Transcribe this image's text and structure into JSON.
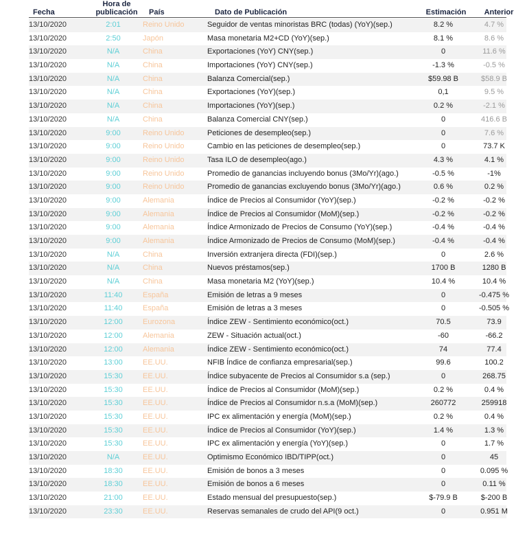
{
  "headers": {
    "date": "Fecha",
    "time_line1": "Hora de",
    "time_line2": "publicación",
    "country": "País",
    "event": "Dato de Publicación",
    "estimate": "Estimación",
    "previous": "Anterior"
  },
  "colors": {
    "time": "#5ecfd6",
    "country": "#f7c59a",
    "stripe": "#f2f2f2",
    "muted": "#9a9a9a"
  },
  "rows": [
    {
      "date": "13/10/2020",
      "time": "2:01",
      "country": "Reino Unido",
      "event": "Seguidor de ventas minoristas BRC (todas) (YoY)(sep.)",
      "estimate": "8.2 %",
      "previous": "4.7 %",
      "muted": true
    },
    {
      "date": "13/10/2020",
      "time": "2:50",
      "country": "Japón",
      "event": "Masa monetaria M2+CD (YoY)(sep.)",
      "estimate": "8.1 %",
      "previous": "8.6 %",
      "muted": true
    },
    {
      "date": "13/10/2020",
      "time": "N/A",
      "country": "China",
      "event": "Exportaciones (YoY) CNY(sep.)",
      "estimate": "0",
      "previous": "11.6 %",
      "muted": true
    },
    {
      "date": "13/10/2020",
      "time": "N/A",
      "country": "China",
      "event": "Importaciones (YoY) CNY(sep.)",
      "estimate": "-1.3 %",
      "previous": "-0.5 %",
      "muted": true
    },
    {
      "date": "13/10/2020",
      "time": "N/A",
      "country": "China",
      "event": "Balanza Comercial(sep.)",
      "estimate": "$59.98 B",
      "previous": "$58.9 B",
      "muted": true
    },
    {
      "date": "13/10/2020",
      "time": "N/A",
      "country": "China",
      "event": "Exportaciones (YoY)(sep.)",
      "estimate": "0,1",
      "previous": "9.5 %",
      "muted": true
    },
    {
      "date": "13/10/2020",
      "time": "N/A",
      "country": "China",
      "event": "Importaciones (YoY)(sep.)",
      "estimate": "0.2 %",
      "previous": "-2.1 %",
      "muted": true
    },
    {
      "date": "13/10/2020",
      "time": "N/A",
      "country": "China",
      "event": "Balanza Comercial CNY(sep.)",
      "estimate": "0",
      "previous": "416.6 B",
      "muted": true
    },
    {
      "date": "13/10/2020",
      "time": "9:00",
      "country": "Reino Unido",
      "event": "Peticiones de desempleo(sep.)",
      "estimate": "0",
      "previous": "7.6 %",
      "muted": true
    },
    {
      "date": "13/10/2020",
      "time": "9:00",
      "country": "Reino Unido",
      "event": "Cambio en las peticiones de desempleo(sep.)",
      "estimate": "0",
      "previous": "73.7 K",
      "muted": false
    },
    {
      "date": "13/10/2020",
      "time": "9:00",
      "country": "Reino Unido",
      "event": "Tasa ILO de desempleo(ago.)",
      "estimate": "4.3 %",
      "previous": "4.1 %",
      "muted": false
    },
    {
      "date": "13/10/2020",
      "time": "9:00",
      "country": "Reino Unido",
      "event": "Promedio de ganancias incluyendo bonus (3Mo/Yr)(ago.)",
      "estimate": "-0.5 %",
      "previous": "-1%",
      "muted": false
    },
    {
      "date": "13/10/2020",
      "time": "9:00",
      "country": "Reino Unido",
      "event": "Promedio de ganancias excluyendo bonus (3Mo/Yr)(ago.)",
      "estimate": "0.6 %",
      "previous": "0.2 %",
      "muted": false
    },
    {
      "date": "13/10/2020",
      "time": "9:00",
      "country": "Alemania",
      "event": "Índice de Precios al Consumidor (YoY)(sep.)",
      "estimate": "-0.2 %",
      "previous": "-0.2 %",
      "muted": false
    },
    {
      "date": "13/10/2020",
      "time": "9:00",
      "country": "Alemania",
      "event": "Índice de Precios al Consumidor (MoM)(sep.)",
      "estimate": "-0.2 %",
      "previous": "-0.2 %",
      "muted": false
    },
    {
      "date": "13/10/2020",
      "time": "9:00",
      "country": "Alemania",
      "event": "Índice Armonizado de Precios de Consumo (YoY)(sep.)",
      "estimate": "-0.4 %",
      "previous": "-0.4 %",
      "muted": false
    },
    {
      "date": "13/10/2020",
      "time": "9:00",
      "country": "Alemania",
      "event": "Índice Armonizado de Precios de Consumo (MoM)(sep.)",
      "estimate": "-0.4 %",
      "previous": "-0.4 %",
      "muted": false
    },
    {
      "date": "13/10/2020",
      "time": "N/A",
      "country": "China",
      "event": "Inversión extranjera directa (FDI)(sep.)",
      "estimate": "0",
      "previous": "2.6 %",
      "muted": false
    },
    {
      "date": "13/10/2020",
      "time": "N/A",
      "country": "China",
      "event": "Nuevos préstamos(sep.)",
      "estimate": "1700 B",
      "previous": "1280 B",
      "muted": false
    },
    {
      "date": "13/10/2020",
      "time": "N/A",
      "country": "China",
      "event": "Masa monetaria M2 (YoY)(sep.)",
      "estimate": "10.4 %",
      "previous": "10.4 %",
      "muted": false
    },
    {
      "date": "13/10/2020",
      "time": "11:40",
      "country": "España",
      "event": "Emisión de letras a 9 meses",
      "estimate": "0",
      "previous": "-0.475 %",
      "muted": false
    },
    {
      "date": "13/10/2020",
      "time": "11:40",
      "country": "España",
      "event": "Emisión de letras a 3 meses",
      "estimate": "0",
      "previous": "-0.505 %",
      "muted": false
    },
    {
      "date": "13/10/2020",
      "time": "12:00",
      "country": "Eurozona",
      "event": "Índice ZEW - Sentimiento económico(oct.)",
      "estimate": "70.5",
      "previous": "73.9",
      "muted": false
    },
    {
      "date": "13/10/2020",
      "time": "12:00",
      "country": "Alemania",
      "event": "ZEW - Situación actual(oct.)",
      "estimate": "-60",
      "previous": "-66.2",
      "muted": false
    },
    {
      "date": "13/10/2020",
      "time": "12:00",
      "country": "Alemania",
      "event": "Índice ZEW - Sentimiento económico(oct.)",
      "estimate": "74",
      "previous": "77.4",
      "muted": false
    },
    {
      "date": "13/10/2020",
      "time": "13:00",
      "country": "EE.UU.",
      "event": "NFIB Índice de confianza empresarial(sep.)",
      "estimate": "99.6",
      "previous": "100.2",
      "muted": false
    },
    {
      "date": "13/10/2020",
      "time": "15:30",
      "country": "EE.UU.",
      "event": "Índice subyacente de Precios al Consumidor s.a (sep.)",
      "estimate": "0",
      "previous": "268.75",
      "muted": false
    },
    {
      "date": "13/10/2020",
      "time": "15:30",
      "country": "EE.UU.",
      "event": "Índice de Precios al Consumidor (MoM)(sep.)",
      "estimate": "0.2 %",
      "previous": "0.4 %",
      "muted": false
    },
    {
      "date": "13/10/2020",
      "time": "15:30",
      "country": "EE.UU.",
      "event": "Índice de Precios al Consumidor n.s.a (MoM)(sep.)",
      "estimate": "260772",
      "previous": "259918",
      "muted": false
    },
    {
      "date": "13/10/2020",
      "time": "15:30",
      "country": "EE.UU.",
      "event": "IPC ex alimentación y energía (MoM)(sep.)",
      "estimate": "0.2 %",
      "previous": "0.4 %",
      "muted": false
    },
    {
      "date": "13/10/2020",
      "time": "15:30",
      "country": "EE.UU.",
      "event": "Índice de Precios al Consumidor (YoY)(sep.)",
      "estimate": "1.4 %",
      "previous": "1.3 %",
      "muted": false
    },
    {
      "date": "13/10/2020",
      "time": "15:30",
      "country": "EE.UU.",
      "event": "IPC ex alimentación y energía (YoY)(sep.)",
      "estimate": "0",
      "previous": "1.7 %",
      "muted": false
    },
    {
      "date": "13/10/2020",
      "time": "N/A",
      "country": "EE.UU.",
      "event": "Optimismo Económico IBD/TIPP(oct.)",
      "estimate": "0",
      "previous": "45",
      "muted": false
    },
    {
      "date": "13/10/2020",
      "time": "18:30",
      "country": "EE.UU.",
      "event": "Emisión de bonos a 3 meses",
      "estimate": "0",
      "previous": "0.095 %",
      "muted": false
    },
    {
      "date": "13/10/2020",
      "time": "18:30",
      "country": "EE.UU.",
      "event": "Emisión de bonos a 6 meses",
      "estimate": "0",
      "previous": "0.11 %",
      "muted": false
    },
    {
      "date": "13/10/2020",
      "time": "21:00",
      "country": "EE.UU.",
      "event": "Estado mensual del presupuesto(sep.)",
      "estimate": "$-79.9 B",
      "previous": "$-200 B",
      "muted": false
    },
    {
      "date": "13/10/2020",
      "time": "23:30",
      "country": "EE.UU.",
      "event": "Reservas semanales de crudo del API(9 oct.)",
      "estimate": "0",
      "previous": "0.951 M",
      "muted": false
    }
  ]
}
